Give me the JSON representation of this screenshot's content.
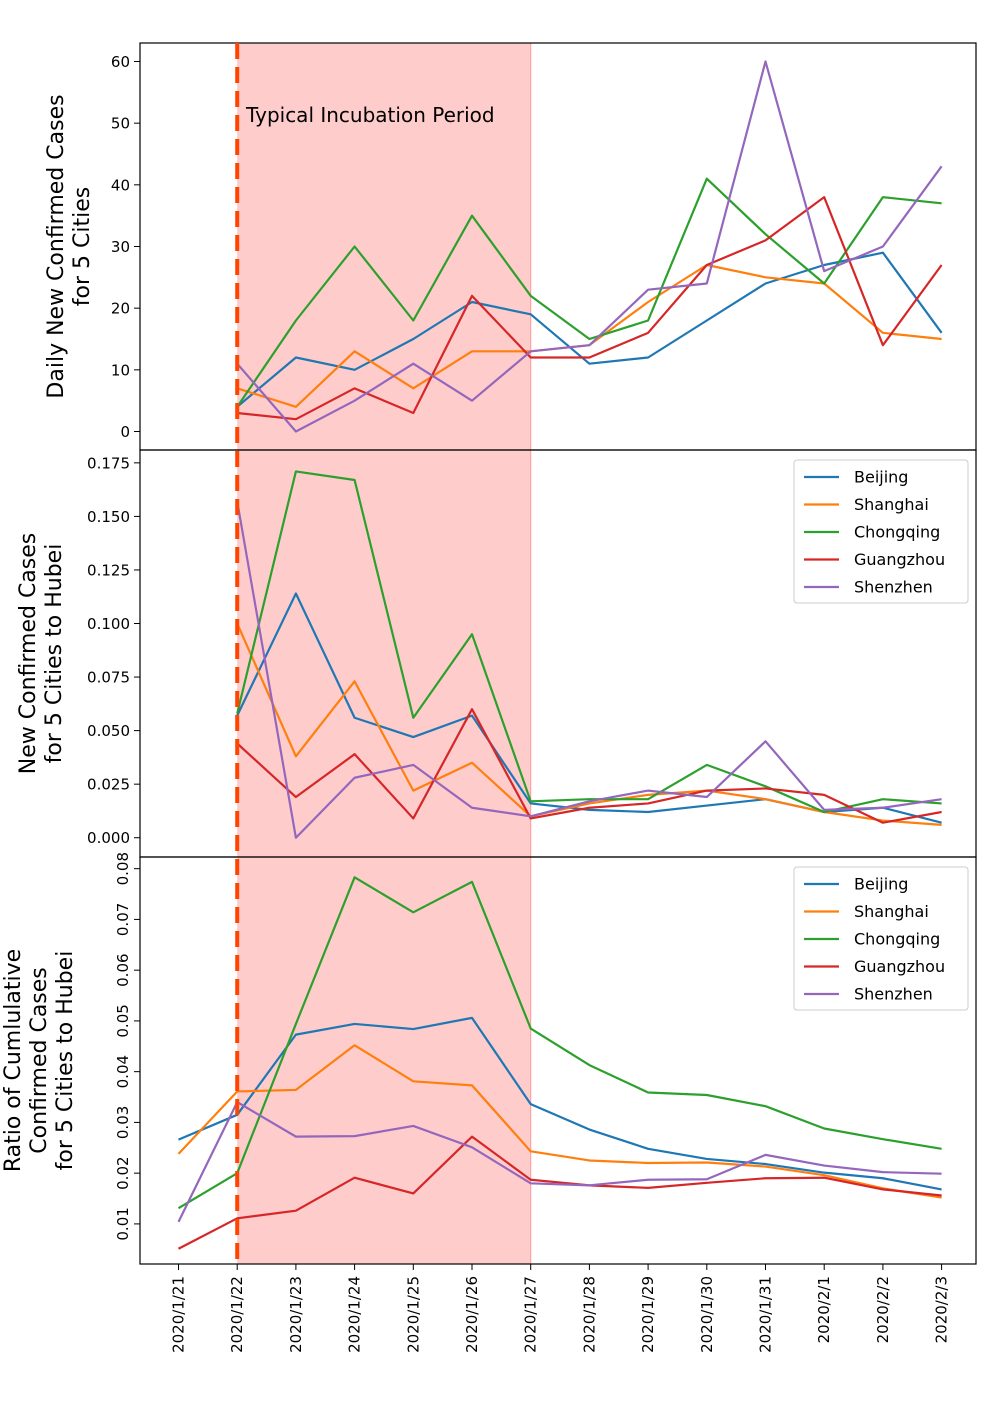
{
  "figure": {
    "x_categories": [
      "2020/1/21",
      "2020/1/22",
      "2020/1/23",
      "2020/1/24",
      "2020/1/25",
      "2020/1/26",
      "2020/1/27",
      "2020/1/28",
      "2020/1/29",
      "2020/1/30",
      "2020/1/31",
      "2020/2/1",
      "2020/2/2",
      "2020/2/3"
    ],
    "vline_index": 1,
    "vline_color": "#ff4500",
    "shade": {
      "from_index": 1,
      "to_index": 6,
      "color": "#ff9999",
      "label": "Typical Incubation Period"
    },
    "series_colors": {
      "Beijing": "#1f77b4",
      "Shanghai": "#ff7f0e",
      "Chongqing": "#2ca02c",
      "Guangzhou": "#d62728",
      "Shenzhen": "#9467bd"
    }
  },
  "chart_data": [
    {
      "type": "line",
      "ylabel": [
        "Daily New Confirmed Cases",
        "for 5 Cities"
      ],
      "ylim": [
        -3,
        63
      ],
      "yticks": [
        0,
        10,
        20,
        30,
        40,
        50,
        60
      ],
      "yticklabels": [
        "0",
        "10",
        "20",
        "30",
        "40",
        "50",
        "60"
      ],
      "legend": null,
      "series": [
        {
          "name": "Beijing",
          "values": [
            null,
            4,
            12,
            10,
            15,
            21,
            19,
            11,
            12,
            18,
            24,
            27,
            29,
            16
          ]
        },
        {
          "name": "Shanghai",
          "values": [
            null,
            7,
            4,
            13,
            7,
            13,
            13,
            14,
            21,
            27,
            25,
            24,
            16,
            15
          ]
        },
        {
          "name": "Chongqing",
          "values": [
            null,
            4,
            18,
            30,
            18,
            35,
            22,
            15,
            18,
            41,
            32,
            24,
            38,
            37
          ]
        },
        {
          "name": "Guangzhou",
          "values": [
            null,
            3,
            2,
            7,
            3,
            22,
            12,
            12,
            16,
            27,
            31,
            38,
            14,
            27
          ]
        },
        {
          "name": "Shenzhen",
          "values": [
            null,
            11,
            0,
            5,
            11,
            5,
            13,
            14,
            23,
            24,
            60,
            26,
            30,
            43
          ]
        }
      ]
    },
    {
      "type": "line",
      "ylabel": [
        "New Confirmed Cases",
        "for 5 Cities to Hubei"
      ],
      "ylim": [
        -0.009,
        0.181
      ],
      "yticks": [
        0,
        0.025,
        0.05,
        0.075,
        0.1,
        0.125,
        0.15,
        0.175
      ],
      "yticklabels": [
        "0.000",
        "0.025",
        "0.050",
        "0.075",
        "0.100",
        "0.125",
        "0.150",
        "0.175"
      ],
      "legend": "top-right",
      "series": [
        {
          "name": "Beijing",
          "values": [
            null,
            0.057,
            0.114,
            0.056,
            0.047,
            0.057,
            0.016,
            0.013,
            0.012,
            0.015,
            0.018,
            0.012,
            0.014,
            0.007
          ]
        },
        {
          "name": "Shanghai",
          "values": [
            null,
            0.1,
            0.038,
            0.073,
            0.022,
            0.035,
            0.01,
            0.016,
            0.02,
            0.022,
            0.018,
            0.012,
            0.008,
            0.006
          ]
        },
        {
          "name": "Chongqing",
          "values": [
            null,
            0.058,
            0.171,
            0.167,
            0.056,
            0.095,
            0.017,
            0.018,
            0.018,
            0.034,
            0.024,
            0.012,
            0.018,
            0.016
          ]
        },
        {
          "name": "Guangzhou",
          "values": [
            null,
            0.044,
            0.019,
            0.039,
            0.009,
            0.06,
            0.009,
            0.014,
            0.016,
            0.022,
            0.023,
            0.02,
            0.007,
            0.012
          ]
        },
        {
          "name": "Shenzhen",
          "values": [
            null,
            0.157,
            0.0,
            0.028,
            0.034,
            0.014,
            0.01,
            0.017,
            0.022,
            0.019,
            0.045,
            0.013,
            0.014,
            0.018
          ]
        }
      ]
    },
    {
      "type": "line",
      "ylabel": [
        "Ratio of Cumlulative",
        "Confirmed Cases",
        "for 5 Cities to Hubei"
      ],
      "ylim": [
        0.0021,
        0.0823
      ],
      "yticks": [
        0.01,
        0.02,
        0.03,
        0.04,
        0.05,
        0.06,
        0.07,
        0.08
      ],
      "yticklabels": [
        "0.01",
        "0.02",
        "0.03",
        "0.04",
        "0.05",
        "0.06",
        "0.07",
        "0.08"
      ],
      "legend": "top-right",
      "series": [
        {
          "name": "Beijing",
          "values": [
            0.0266,
            0.0315,
            0.0473,
            0.0494,
            0.0484,
            0.0506,
            0.0336,
            0.0286,
            0.0248,
            0.0228,
            0.0218,
            0.0201,
            0.019,
            0.0168
          ]
        },
        {
          "name": "Shanghai",
          "values": [
            0.0238,
            0.0361,
            0.0364,
            0.0452,
            0.0381,
            0.0373,
            0.0243,
            0.0225,
            0.022,
            0.0221,
            0.0213,
            0.0196,
            0.017,
            0.0152
          ]
        },
        {
          "name": "Chongqing",
          "values": [
            0.0131,
            0.02,
            0.0494,
            0.0783,
            0.0714,
            0.0774,
            0.0485,
            0.0413,
            0.0359,
            0.0354,
            0.0332,
            0.0288,
            0.0267,
            0.0248
          ]
        },
        {
          "name": "Guangzhou",
          "values": [
            0.0051,
            0.0111,
            0.0126,
            0.0191,
            0.016,
            0.0272,
            0.0187,
            0.0176,
            0.0171,
            0.0181,
            0.019,
            0.0191,
            0.0168,
            0.0156
          ]
        },
        {
          "name": "Shenzhen",
          "values": [
            0.0104,
            0.034,
            0.0272,
            0.0273,
            0.0293,
            0.0251,
            0.018,
            0.0176,
            0.0187,
            0.0188,
            0.0236,
            0.0215,
            0.0202,
            0.0199
          ]
        }
      ]
    }
  ]
}
